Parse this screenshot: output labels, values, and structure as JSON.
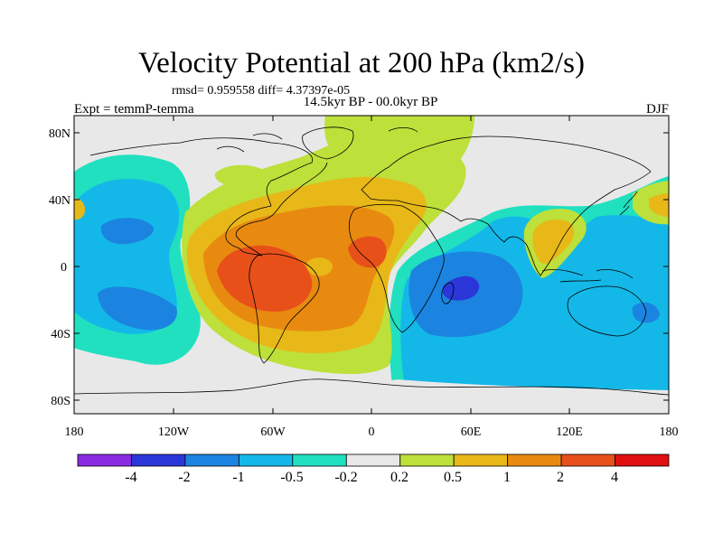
{
  "title": "Velocity Potential at 200 hPa (km2/s)",
  "stats": "rmsd= 0.959558  diff= 4.37397e-05",
  "period": "14.5kyr BP - 00.0kyr BP",
  "experiment": "Expt = temmP-temma",
  "season": "DJF",
  "lat_labels": [
    "80N",
    "40N",
    "0",
    "40S",
    "80S"
  ],
  "lon_labels": [
    "180",
    "120W",
    "60W",
    "0",
    "60E",
    "120E",
    "180"
  ],
  "colorbar": {
    "labels": [
      "-4",
      "-2",
      "-1",
      "-0.5",
      "-0.2",
      "0.2",
      "0.5",
      "1",
      "2",
      "4"
    ],
    "colors": [
      "#8a2be2",
      "#2b36d9",
      "#1b84e0",
      "#14b8e8",
      "#20e0c0",
      "#e8e8e8",
      "#bde03a",
      "#e8b818",
      "#e88a10",
      "#e8501a",
      "#e01010"
    ]
  },
  "colors": {
    "land_outline": "#000000",
    "ocean_neutral": "#e8e8e8"
  }
}
